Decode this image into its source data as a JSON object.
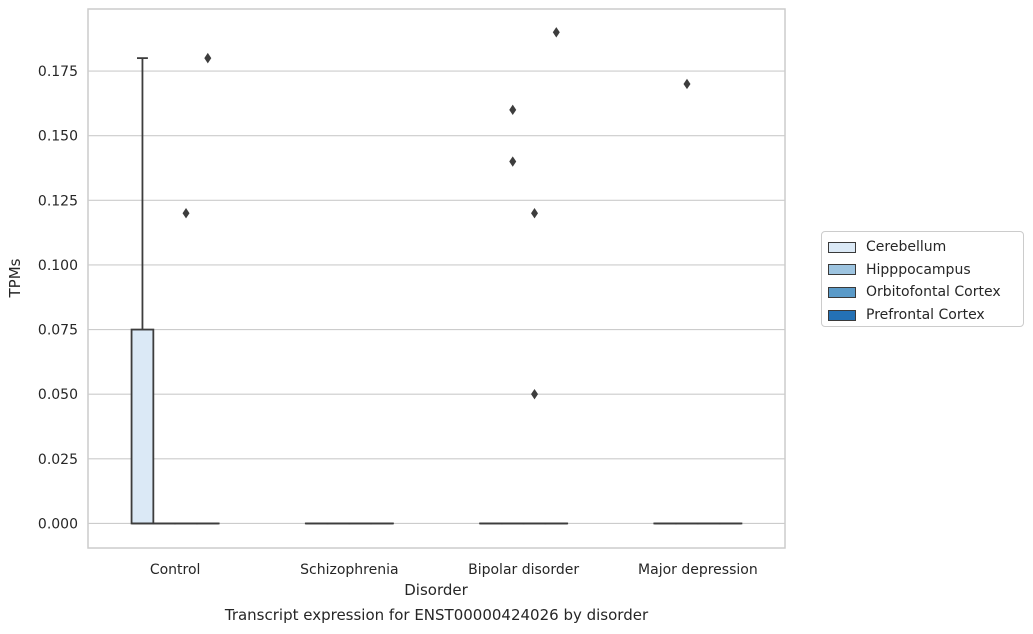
{
  "caption": "Transcript expression for ENST00000424026 by disorder",
  "chart_data": {
    "type": "box",
    "title": "",
    "xlabel": "Disorder",
    "ylabel": "TPMs",
    "ylim": [
      -0.0095,
      0.199
    ],
    "yticks": [
      0.0,
      0.025,
      0.05,
      0.075,
      0.1,
      0.125,
      0.15,
      0.175
    ],
    "ytick_labels": [
      "0.000",
      "0.025",
      "0.050",
      "0.075",
      "0.100",
      "0.125",
      "0.150",
      "0.175"
    ],
    "categories": [
      "Control",
      "Schizophrenia",
      "Bipolar disorder",
      "Major depression"
    ],
    "grid": "horizontal",
    "legend_position": "right",
    "series": [
      {
        "name": "Cerebellum",
        "color": "#dbe9f6",
        "boxes": [
          {
            "category": "Control",
            "q1": 0.0,
            "median": 0.0,
            "q3": 0.075,
            "whisker_low": 0.0,
            "whisker_high": 0.18,
            "outliers": []
          },
          {
            "category": "Schizophrenia",
            "q1": 0.0,
            "median": 0.0,
            "q3": 0.0,
            "whisker_low": 0.0,
            "whisker_high": 0.0,
            "outliers": []
          },
          {
            "category": "Bipolar disorder",
            "q1": 0.0,
            "median": 0.0,
            "q3": 0.0,
            "whisker_low": 0.0,
            "whisker_high": 0.0,
            "outliers": []
          },
          {
            "category": "Major depression",
            "q1": 0.0,
            "median": 0.0,
            "q3": 0.0,
            "whisker_low": 0.0,
            "whisker_high": 0.0,
            "outliers": []
          }
        ]
      },
      {
        "name": "Hipppocampus",
        "color": "#9dc4e0",
        "boxes": [
          {
            "category": "Control",
            "q1": 0.0,
            "median": 0.0,
            "q3": 0.0,
            "whisker_low": 0.0,
            "whisker_high": 0.0,
            "outliers": []
          },
          {
            "category": "Schizophrenia",
            "q1": 0.0,
            "median": 0.0,
            "q3": 0.0,
            "whisker_low": 0.0,
            "whisker_high": 0.0,
            "outliers": []
          },
          {
            "category": "Bipolar disorder",
            "q1": 0.0,
            "median": 0.0,
            "q3": 0.0,
            "whisker_low": 0.0,
            "whisker_high": 0.0,
            "outliers": [
              0.14,
              0.16
            ]
          },
          {
            "category": "Major depression",
            "q1": 0.0,
            "median": 0.0,
            "q3": 0.0,
            "whisker_low": 0.0,
            "whisker_high": 0.0,
            "outliers": [
              0.17
            ]
          }
        ]
      },
      {
        "name": "Orbitofontal Cortex",
        "color": "#5a9ac8",
        "boxes": [
          {
            "category": "Control",
            "q1": 0.0,
            "median": 0.0,
            "q3": 0.0,
            "whisker_low": 0.0,
            "whisker_high": 0.0,
            "outliers": [
              0.12
            ]
          },
          {
            "category": "Schizophrenia",
            "q1": 0.0,
            "median": 0.0,
            "q3": 0.0,
            "whisker_low": 0.0,
            "whisker_high": 0.0,
            "outliers": []
          },
          {
            "category": "Bipolar disorder",
            "q1": 0.0,
            "median": 0.0,
            "q3": 0.0,
            "whisker_low": 0.0,
            "whisker_high": 0.0,
            "outliers": [
              0.05,
              0.12
            ]
          },
          {
            "category": "Major depression",
            "q1": 0.0,
            "median": 0.0,
            "q3": 0.0,
            "whisker_low": 0.0,
            "whisker_high": 0.0,
            "outliers": []
          }
        ]
      },
      {
        "name": "Prefrontal Cortex",
        "color": "#2471b5",
        "boxes": [
          {
            "category": "Control",
            "q1": 0.0,
            "median": 0.0,
            "q3": 0.0,
            "whisker_low": 0.0,
            "whisker_high": 0.0,
            "outliers": [
              0.18
            ]
          },
          {
            "category": "Schizophrenia",
            "q1": 0.0,
            "median": 0.0,
            "q3": 0.0,
            "whisker_low": 0.0,
            "whisker_high": 0.0,
            "outliers": []
          },
          {
            "category": "Bipolar disorder",
            "q1": 0.0,
            "median": 0.0,
            "q3": 0.0,
            "whisker_low": 0.0,
            "whisker_high": 0.0,
            "outliers": [
              0.19
            ]
          },
          {
            "category": "Major depression",
            "q1": 0.0,
            "median": 0.0,
            "q3": 0.0,
            "whisker_low": 0.0,
            "whisker_high": 0.0,
            "outliers": []
          }
        ]
      }
    ]
  }
}
